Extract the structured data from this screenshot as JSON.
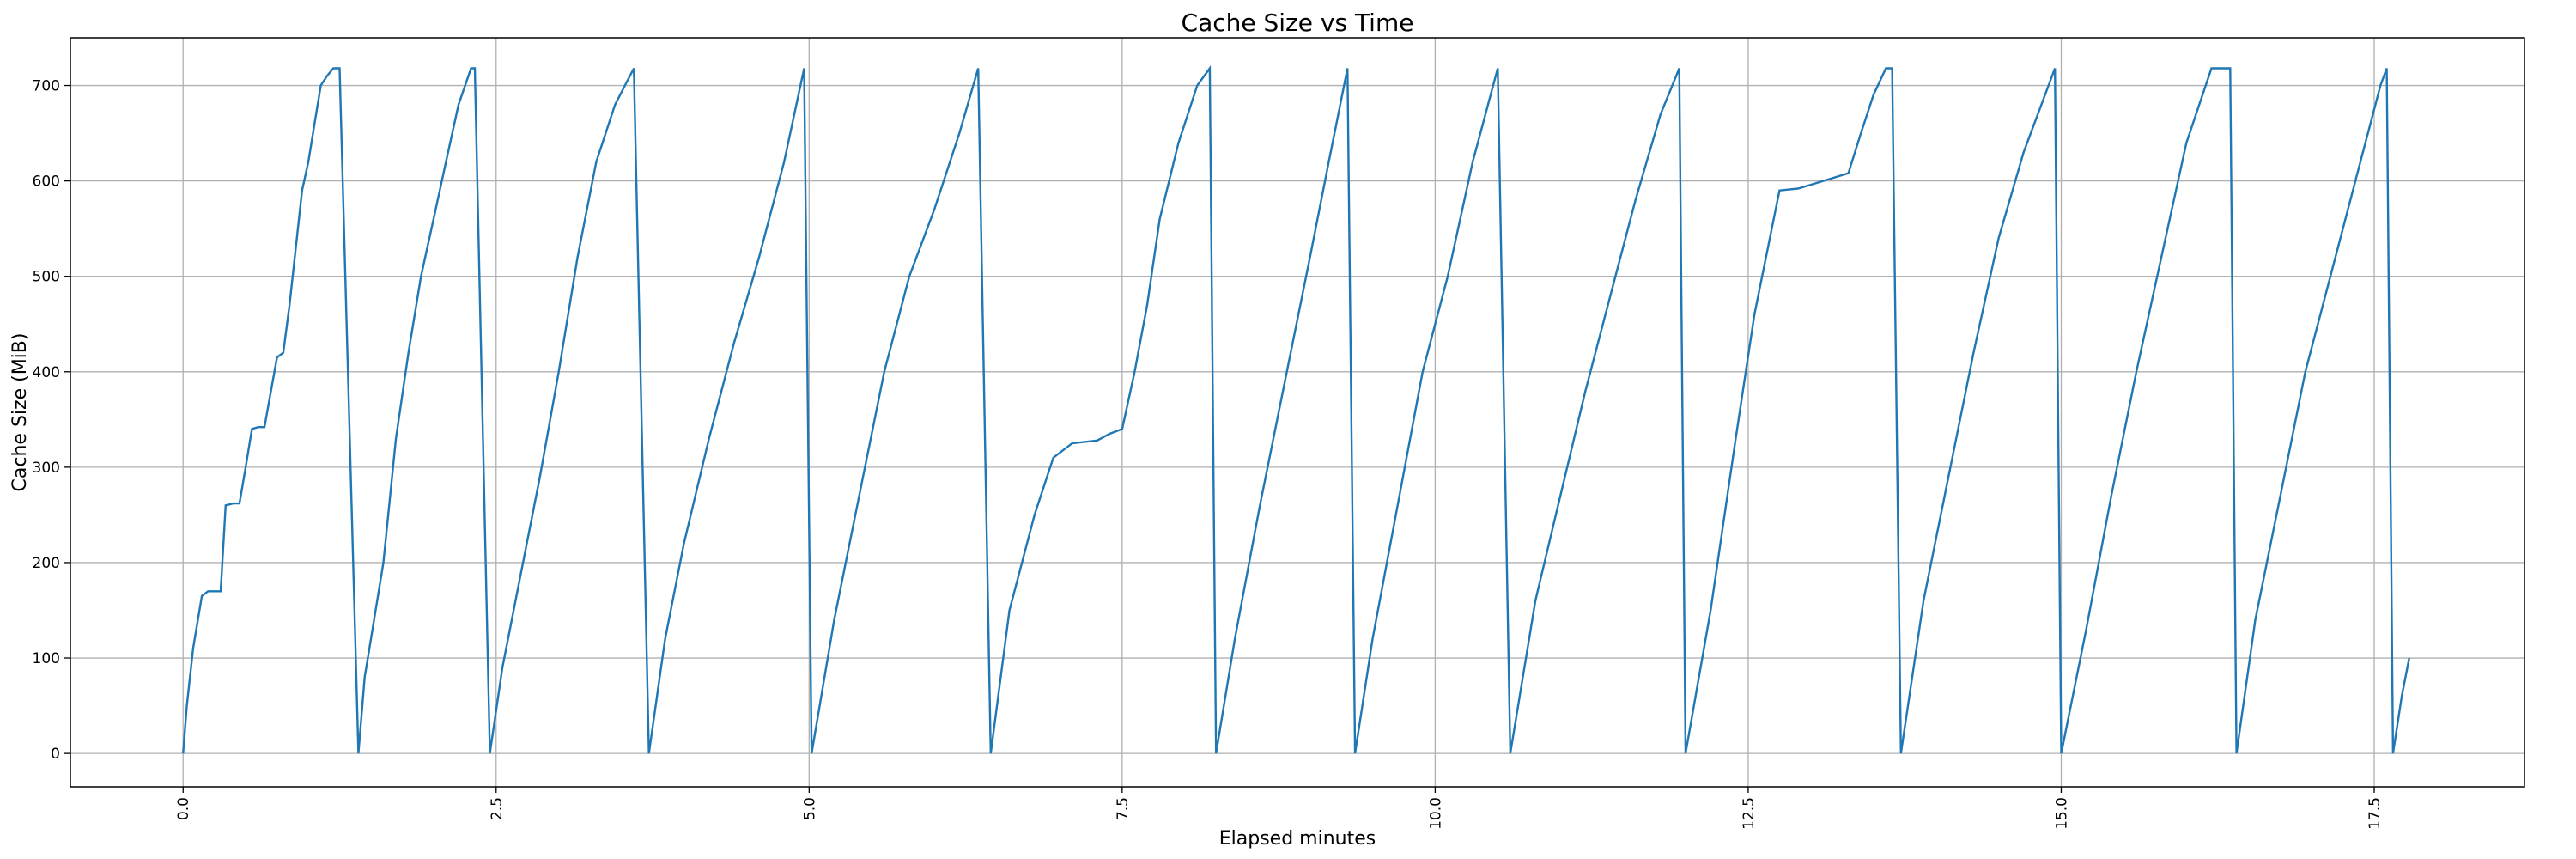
{
  "chart_data": {
    "type": "line",
    "title": "Cache Size vs Time",
    "xlabel": "Elapsed minutes",
    "ylabel": "Cache Size (MiB)",
    "xlim": [
      -0.9,
      18.7
    ],
    "ylim": [
      -35,
      750
    ],
    "x_ticks": [
      0.0,
      2.5,
      5.0,
      7.5,
      10.0,
      12.5,
      15.0,
      17.5
    ],
    "x_tick_labels": [
      "0.0",
      "2.5",
      "5.0",
      "7.5",
      "10.0",
      "12.5",
      "15.0",
      "17.5"
    ],
    "y_ticks": [
      0,
      100,
      200,
      300,
      400,
      500,
      600,
      700
    ],
    "y_tick_labels": [
      "0",
      "100",
      "200",
      "300",
      "400",
      "500",
      "600",
      "700"
    ],
    "x_tick_rotation": 90,
    "grid": true,
    "line_color": "#1f77b4",
    "series": [
      {
        "x": [
          0.0,
          0.03,
          0.08,
          0.15,
          0.2,
          0.25,
          0.3,
          0.34,
          0.4,
          0.45,
          0.5,
          0.55,
          0.6,
          0.65,
          0.75,
          0.8,
          0.85,
          0.9,
          0.95,
          1.0,
          1.05,
          1.1,
          1.15,
          1.2,
          1.25,
          1.4,
          1.45,
          1.5,
          1.6,
          1.7,
          1.8,
          1.9,
          2.0,
          2.1,
          2.2,
          2.3,
          2.33,
          2.45,
          2.55,
          2.7,
          2.85,
          3.0,
          3.15,
          3.3,
          3.45,
          3.6,
          3.72,
          3.85,
          4.0,
          4.2,
          4.4,
          4.6,
          4.8,
          4.96,
          5.02,
          5.2,
          5.4,
          5.6,
          5.8,
          6.0,
          6.2,
          6.35,
          6.45,
          6.6,
          6.8,
          6.95,
          7.1,
          7.3,
          7.4,
          7.5,
          7.6,
          7.7,
          7.8,
          7.95,
          8.1,
          8.2,
          8.25,
          8.4,
          8.6,
          8.8,
          9.0,
          9.15,
          9.3,
          9.36,
          9.5,
          9.7,
          9.9,
          10.1,
          10.3,
          10.5,
          10.6,
          10.8,
          11.0,
          11.2,
          11.4,
          11.6,
          11.8,
          11.95,
          12.0,
          12.2,
          12.4,
          12.55,
          12.75,
          12.9,
          13.1,
          13.3,
          13.4,
          13.5,
          13.6,
          13.65,
          13.72,
          13.9,
          14.1,
          14.3,
          14.5,
          14.7,
          14.95,
          15.0,
          15.2,
          15.4,
          15.6,
          15.8,
          16.0,
          16.2,
          16.35,
          16.4,
          16.55,
          16.75,
          16.95,
          17.15,
          17.35,
          17.55,
          17.6,
          17.65,
          17.72,
          17.78
        ],
        "y": [
          0,
          50,
          110,
          165,
          170,
          170,
          170,
          260,
          262,
          262,
          300,
          340,
          342,
          342,
          415,
          420,
          470,
          530,
          590,
          620,
          660,
          700,
          710,
          718,
          718,
          0,
          80,
          120,
          200,
          330,
          420,
          500,
          560,
          620,
          680,
          718,
          718,
          0,
          90,
          190,
          290,
          400,
          520,
          620,
          680,
          718,
          0,
          120,
          220,
          330,
          430,
          520,
          620,
          718,
          0,
          140,
          270,
          400,
          500,
          570,
          650,
          718,
          0,
          150,
          250,
          310,
          325,
          328,
          335,
          340,
          400,
          470,
          560,
          640,
          700,
          718,
          0,
          120,
          260,
          390,
          520,
          620,
          718,
          0,
          120,
          260,
          400,
          500,
          620,
          718,
          0,
          160,
          270,
          380,
          480,
          580,
          670,
          718,
          0,
          150,
          330,
          460,
          590,
          592,
          600,
          608,
          650,
          690,
          718,
          718,
          0,
          160,
          290,
          420,
          540,
          630,
          718,
          0,
          130,
          270,
          400,
          520,
          640,
          718,
          718,
          0,
          140,
          270,
          400,
          500,
          600,
          700,
          718,
          0,
          60,
          100
        ]
      }
    ]
  }
}
